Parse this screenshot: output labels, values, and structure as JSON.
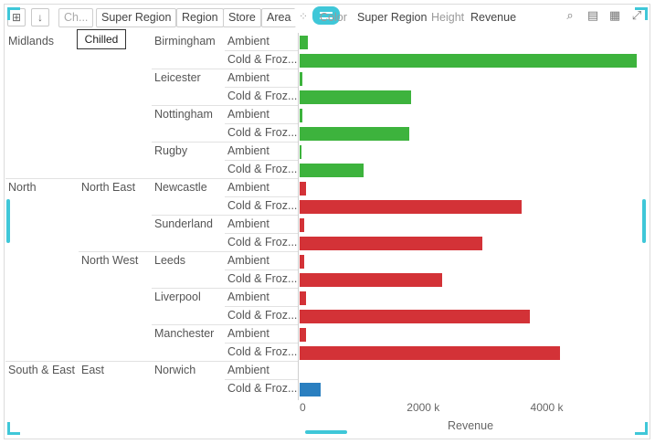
{
  "toolbar": {
    "pills": [
      "Ch...",
      "Super Region",
      "Region",
      "Store",
      "Area"
    ],
    "color_label": "Color",
    "color_value": "Super Region",
    "height_label": "Height",
    "height_value": "Revenue",
    "tooltip": "Chilled"
  },
  "colors": {
    "Midlands": "#3db33d",
    "North": "#d33237",
    "South & East": "#2a7fc0",
    "accent": "#3fc7d8"
  },
  "rows": [
    [
      "Midlands",
      "",
      "Birmingham",
      "Ambient"
    ],
    [
      "",
      "",
      "",
      "Cold & Froz..."
    ],
    [
      "",
      "",
      "Leicester",
      "Ambient"
    ],
    [
      "",
      "",
      "",
      "Cold & Froz..."
    ],
    [
      "",
      "",
      "Nottingham",
      "Ambient"
    ],
    [
      "",
      "",
      "",
      "Cold & Froz..."
    ],
    [
      "",
      "",
      "Rugby",
      "Ambient"
    ],
    [
      "",
      "",
      "",
      "Cold & Froz..."
    ],
    [
      "North",
      "North East",
      "Newcastle",
      "Ambient"
    ],
    [
      "",
      "",
      "",
      "Cold & Froz..."
    ],
    [
      "",
      "",
      "Sunderland",
      "Ambient"
    ],
    [
      "",
      "",
      "",
      "Cold & Froz..."
    ],
    [
      "",
      "North West",
      "Leeds",
      "Ambient"
    ],
    [
      "",
      "",
      "",
      "Cold & Froz..."
    ],
    [
      "",
      "",
      "Liverpool",
      "Ambient"
    ],
    [
      "",
      "",
      "",
      "Cold & Froz..."
    ],
    [
      "",
      "",
      "Manchester",
      "Ambient"
    ],
    [
      "",
      "",
      "",
      "Cold & Froz..."
    ],
    [
      "South & East",
      "East",
      "Norwich",
      "Ambient"
    ],
    [
      "",
      "",
      "",
      "Cold & Froz..."
    ]
  ],
  "chart_data": {
    "type": "bar",
    "orientation": "horizontal",
    "xlabel": "Revenue",
    "xlim": [
      0,
      5500
    ],
    "x_ticks": [
      "0",
      "2000 k",
      "4000 k"
    ],
    "x_tick_values": [
      0,
      2000,
      4000
    ],
    "categories": [
      "Birmingham Ambient",
      "Birmingham Cold & Frozen",
      "Leicester Ambient",
      "Leicester Cold & Frozen",
      "Nottingham Ambient",
      "Nottingham Cold & Frozen",
      "Rugby Ambient",
      "Rugby Cold & Frozen",
      "Newcastle Ambient",
      "Newcastle Cold & Frozen",
      "Sunderland Ambient",
      "Sunderland Cold & Frozen",
      "Leeds Ambient",
      "Leeds Cold & Frozen",
      "Liverpool Ambient",
      "Liverpool Cold & Frozen",
      "Manchester Ambient",
      "Manchester Cold & Frozen",
      "Norwich Ambient",
      "Norwich Cold & Frozen"
    ],
    "groups": [
      "Midlands",
      "Midlands",
      "Midlands",
      "Midlands",
      "Midlands",
      "Midlands",
      "Midlands",
      "Midlands",
      "North",
      "North",
      "North",
      "North",
      "North",
      "North",
      "North",
      "North",
      "North",
      "North",
      "South & East",
      "South & East"
    ],
    "values": [
      130,
      5450,
      45,
      1800,
      45,
      1780,
      15,
      1030,
      100,
      3600,
      80,
      2950,
      70,
      2300,
      100,
      3720,
      110,
      4220,
      0,
      340
    ]
  }
}
